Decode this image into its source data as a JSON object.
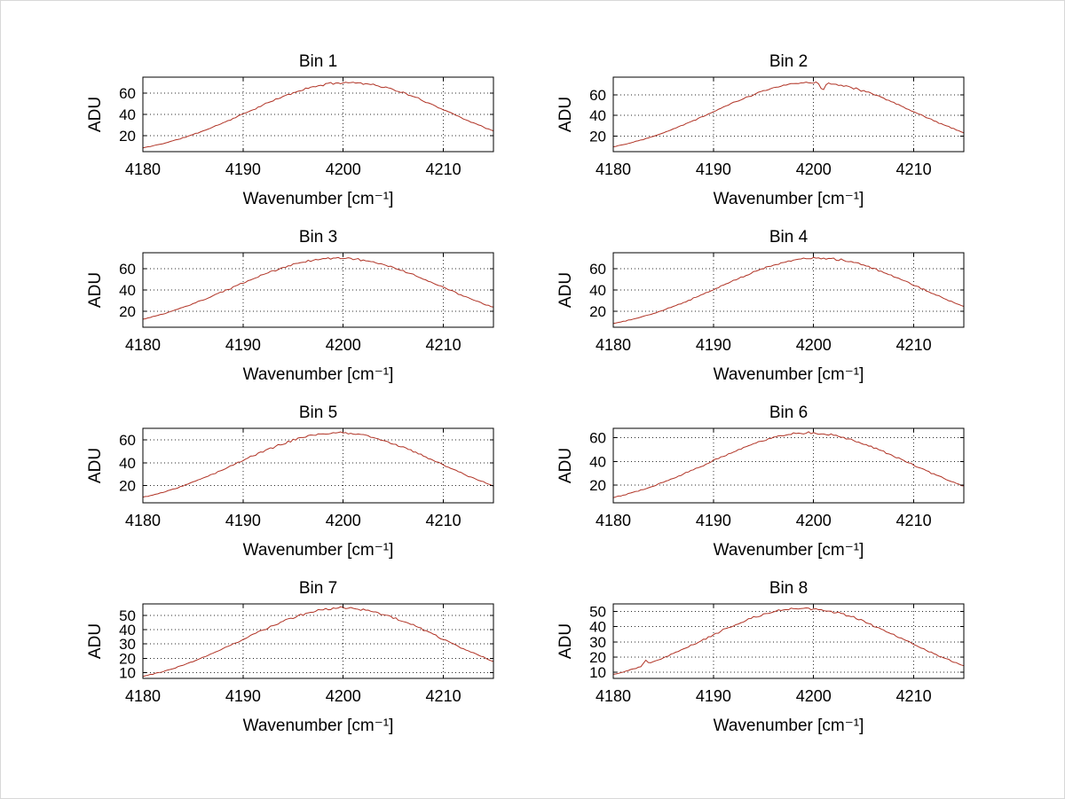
{
  "figure": {
    "background": "#ffffff",
    "line_color": "#b03224",
    "grid_color": "#2a2a2a",
    "axis_color": "#000000",
    "text_color": "#000000"
  },
  "chart_data": [
    {
      "type": "line",
      "title": "Bin 1",
      "xlabel": "Wavenumber [cm⁻¹]",
      "ylabel": "ADU",
      "xlim": [
        4180,
        4215
      ],
      "ylim": [
        5,
        75
      ],
      "x_ticks": [
        4180,
        4190,
        4200,
        4210
      ],
      "y_ticks": [
        20,
        40,
        60
      ],
      "grid": true,
      "legend": "none",
      "x_samples": [
        4180,
        4182.5,
        4185,
        4187.5,
        4190,
        4192.5,
        4195,
        4197.5,
        4200,
        4202.5,
        4205,
        4207.5,
        4210,
        4212.5,
        4215
      ],
      "y_samples": [
        8.6,
        13.8,
        21.1,
        30.1,
        40.3,
        50.8,
        60.2,
        66.9,
        69.9,
        68.6,
        63.3,
        54.8,
        44.6,
        34.1,
        24.5
      ],
      "model": {
        "shape": "gaussian",
        "center": 4200.5,
        "sigma": 10,
        "peak": 70,
        "baseline": 0,
        "noise": 1.0,
        "seed": 11
      }
    },
    {
      "type": "line",
      "title": "Bin 2",
      "xlabel": "Wavenumber [cm⁻¹]",
      "ylabel": "ADU",
      "xlim": [
        4180,
        4215
      ],
      "ylim": [
        5,
        77
      ],
      "x_ticks": [
        4180,
        4190,
        4200,
        4210
      ],
      "y_ticks": [
        20,
        40,
        60
      ],
      "grid": true,
      "legend": "none",
      "x_samples": [
        4180,
        4182.5,
        4185,
        4187.5,
        4190,
        4192.5,
        4195,
        4197.5,
        4200,
        4202.5,
        4205,
        4207.5,
        4210,
        4212.5,
        4215
      ],
      "y_samples": [
        9.7,
        15.6,
        23.4,
        33.0,
        43.7,
        54.3,
        63.5,
        69.8,
        72.0,
        69.8,
        63.5,
        54.3,
        43.7,
        33.0,
        23.4
      ],
      "spike": {
        "x": 4200.9,
        "depth": 8,
        "width": 0.45
      },
      "model": {
        "shape": "gaussian",
        "center": 4200,
        "sigma": 10,
        "peak": 72,
        "baseline": 0,
        "noise": 1.0,
        "seed": 22
      }
    },
    {
      "type": "line",
      "title": "Bin 3",
      "xlabel": "Wavenumber [cm⁻¹]",
      "ylabel": "ADU",
      "xlim": [
        4180,
        4215
      ],
      "ylim": [
        5,
        75
      ],
      "x_ticks": [
        4180,
        4190,
        4200,
        4210
      ],
      "y_ticks": [
        20,
        40,
        60
      ],
      "grid": true,
      "legend": "none",
      "x_samples": [
        4180,
        4182.5,
        4185,
        4187.5,
        4190,
        4192.5,
        4195,
        4197.5,
        4200,
        4202.5,
        4205,
        4207.5,
        4210,
        4212.5,
        4215
      ],
      "y_samples": [
        12.5,
        18.9,
        27.0,
        36.4,
        46.5,
        56.0,
        63.9,
        68.7,
        69.9,
        67.2,
        61.0,
        52.4,
        42.5,
        32.5,
        23.5
      ],
      "model": {
        "shape": "gaussian",
        "center": 4199.5,
        "sigma": 10.5,
        "peak": 70,
        "baseline": 0,
        "noise": 1.0,
        "seed": 33
      }
    },
    {
      "type": "line",
      "title": "Bin 4",
      "xlabel": "Wavenumber [cm⁻¹]",
      "ylabel": "ADU",
      "xlim": [
        4180,
        4215
      ],
      "ylim": [
        5,
        75
      ],
      "x_ticks": [
        4180,
        4190,
        4200,
        4210
      ],
      "y_ticks": [
        20,
        40,
        60
      ],
      "grid": true,
      "legend": "none",
      "x_samples": [
        4180,
        4182.5,
        4185,
        4187.5,
        4190,
        4192.5,
        4195,
        4197.5,
        4200,
        4202.5,
        4205,
        4207.5,
        4210,
        4212.5,
        4215
      ],
      "y_samples": [
        8.6,
        13.8,
        21.1,
        30.1,
        40.3,
        50.8,
        60.2,
        66.9,
        69.9,
        68.6,
        63.3,
        54.8,
        44.6,
        34.1,
        24.5
      ],
      "model": {
        "shape": "gaussian",
        "center": 4200.5,
        "sigma": 10,
        "peak": 70,
        "baseline": 0,
        "noise": 1.0,
        "seed": 44
      }
    },
    {
      "type": "line",
      "title": "Bin 5",
      "xlabel": "Wavenumber [cm⁻¹]",
      "ylabel": "ADU",
      "xlim": [
        4180,
        4215
      ],
      "ylim": [
        5,
        70
      ],
      "x_ticks": [
        4180,
        4190,
        4200,
        4210
      ],
      "y_ticks": [
        20,
        40,
        60
      ],
      "grid": true,
      "legend": "none",
      "x_samples": [
        4180,
        4182.5,
        4185,
        4187.5,
        4190,
        4192.5,
        4195,
        4197.5,
        4200,
        4202.5,
        4205,
        4207.5,
        4210,
        4212.5,
        4215
      ],
      "y_samples": [
        9.9,
        15.6,
        23.1,
        32.1,
        42.0,
        51.7,
        59.6,
        64.7,
        65.9,
        63.1,
        56.7,
        47.9,
        38.0,
        28.4,
        19.9
      ],
      "model": {
        "shape": "gaussian",
        "center": 4199.5,
        "sigma": 10,
        "peak": 66,
        "baseline": 0,
        "noise": 1.0,
        "seed": 55
      }
    },
    {
      "type": "line",
      "title": "Bin 6",
      "xlabel": "Wavenumber [cm⁻¹]",
      "ylabel": "ADU",
      "xlim": [
        4180,
        4215
      ],
      "ylim": [
        5,
        68
      ],
      "x_ticks": [
        4180,
        4190,
        4200,
        4210
      ],
      "y_ticks": [
        20,
        40,
        60
      ],
      "grid": true,
      "legend": "none",
      "x_samples": [
        4180,
        4182.5,
        4185,
        4187.5,
        4190,
        4192.5,
        4195,
        4197.5,
        4200,
        4202.5,
        4205,
        4207.5,
        4210,
        4212.5,
        4215
      ],
      "y_samples": [
        9.6,
        15.1,
        22.4,
        31.1,
        40.8,
        50.1,
        57.8,
        62.7,
        63.9,
        61.2,
        55.0,
        46.5,
        36.9,
        27.5,
        19.3
      ],
      "model": {
        "shape": "gaussian",
        "center": 4199.5,
        "sigma": 10,
        "peak": 64,
        "baseline": 0,
        "noise": 1.0,
        "seed": 66
      }
    },
    {
      "type": "line",
      "title": "Bin 7",
      "xlabel": "Wavenumber [cm⁻¹]",
      "ylabel": "ADU",
      "xlim": [
        4180,
        4215
      ],
      "ylim": [
        6,
        58
      ],
      "x_ticks": [
        4180,
        4190,
        4200,
        4210
      ],
      "y_ticks": [
        10,
        20,
        30,
        40,
        50
      ],
      "grid": true,
      "legend": "none",
      "x_samples": [
        4180,
        4182.5,
        4185,
        4187.5,
        4190,
        4192.5,
        4195,
        4197.5,
        4200,
        4202.5,
        4205,
        4207.5,
        4210,
        4212.5,
        4215
      ],
      "y_samples": [
        7.4,
        11.9,
        17.9,
        25.2,
        33.4,
        41.5,
        48.5,
        53.3,
        55.0,
        53.3,
        48.5,
        41.5,
        33.4,
        25.2,
        17.9
      ],
      "model": {
        "shape": "gaussian",
        "center": 4200,
        "sigma": 10,
        "peak": 55,
        "baseline": 0,
        "noise": 0.9,
        "seed": 77
      }
    },
    {
      "type": "line",
      "title": "Bin 8",
      "xlabel": "Wavenumber [cm⁻¹]",
      "ylabel": "ADU",
      "xlim": [
        4180,
        4215
      ],
      "ylim": [
        6,
        55
      ],
      "x_ticks": [
        4180,
        4190,
        4200,
        4210
      ],
      "y_ticks": [
        10,
        20,
        30,
        40,
        50
      ],
      "grid": true,
      "legend": "none",
      "x_samples": [
        4180,
        4182.5,
        4185,
        4187.5,
        4190,
        4192.5,
        4195,
        4197.5,
        4200,
        4202.5,
        4205,
        4207.5,
        4210,
        4212.5,
        4215
      ],
      "y_samples": [
        8.6,
        13.3,
        19.5,
        26.8,
        34.7,
        42.1,
        48.0,
        51.4,
        51.7,
        48.9,
        43.4,
        36.2,
        28.4,
        20.9,
        14.5
      ],
      "spike": {
        "x": 4183.2,
        "depth": -3,
        "width": 0.4
      },
      "model": {
        "shape": "gaussian",
        "center": 4199,
        "sigma": 10,
        "peak": 52,
        "baseline": 0,
        "noise": 0.9,
        "seed": 88
      }
    }
  ]
}
